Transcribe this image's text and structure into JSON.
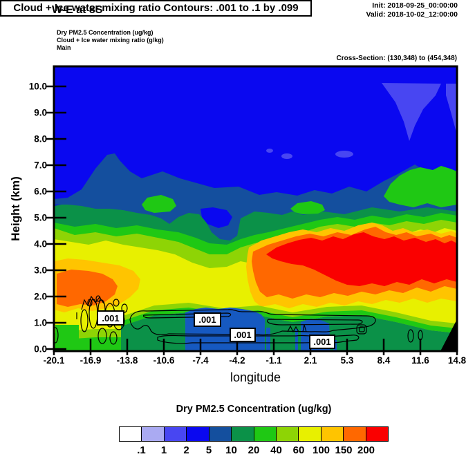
{
  "header": {
    "title": "W-E at 8S",
    "init_label": "Init: 2018-09-25_00:00:00",
    "valid_label": "Valid: 2018-10-02_12:00:00",
    "field_line1": "Dry PM2.5 Concentration   (ug/kg)",
    "field_line2": "Cloud + Ice water mixing ratio   (g/kg)",
    "field_line3": "Main",
    "cross_section": "Cross-Section: (130,348) to (454,348)"
  },
  "plot": {
    "banner": "Cloud + Ice water mixing ratio Contours: .001 to .1 by .099",
    "xlabel": "longitude",
    "ylabel": "Height (km)",
    "x_tick_labels": [
      "-20.1",
      "-16.9",
      "-13.8",
      "-10.6",
      "-7.4",
      "-4.2",
      "-1.1",
      "2.1",
      "5.3",
      "8.4",
      "11.6",
      "14.8"
    ],
    "y_tick_labels": [
      "10.0",
      "9.0",
      "8.0",
      "7.0",
      "6.0",
      "5.0",
      "4.0",
      "3.0",
      "2.0",
      "1.0",
      "0.0"
    ],
    "contour_labels": [
      ".001",
      ".001",
      ".001",
      ".001"
    ],
    "colors": {
      "surface_blue": "#1659c0",
      "terrain": "#000000"
    }
  },
  "colorbar": {
    "title": "Dry PM2.5 Concentration  (ug/kg)",
    "tick_labels": [
      ".1",
      "1",
      "2",
      "5",
      "10",
      "20",
      "40",
      "60",
      "100",
      "150",
      "200"
    ],
    "colors": [
      "#ffffff",
      "#aaaaf2",
      "#4846f2",
      "#0a08f0",
      "#144f9e",
      "#0b9148",
      "#1fc814",
      "#8ed405",
      "#e8f000",
      "#ffc400",
      "#ff6800",
      "#fa0000"
    ]
  },
  "chart_data": {
    "type": "heatmap",
    "title": "W-E at 8S",
    "subtitle": "Cloud + Ice water mixing ratio Contours: .001 to .1 by .099",
    "xlabel": "longitude",
    "ylabel": "Height (km)",
    "x_range": [
      -20.1,
      14.8
    ],
    "y_range": [
      0,
      10.8
    ],
    "grid": false,
    "fill_variable": "Dry PM2.5 Concentration (ug/kg)",
    "fill_levels": [
      0.1,
      1,
      2,
      5,
      10,
      20,
      40,
      60,
      100,
      150,
      200
    ],
    "fill_colors": [
      "#ffffff",
      "#aaaaf2",
      "#4846f2",
      "#0a08f0",
      "#144f9e",
      "#0b9148",
      "#1fc814",
      "#8ed405",
      "#e8f000",
      "#ffc400",
      "#ff6800",
      "#fa0000"
    ],
    "contour_variable": "Cloud + Ice water mixing ratio (g/kg)",
    "contour_levels_note": ".001 to .1 by .099",
    "contour_levels": [
      0.001,
      0.1
    ],
    "x": [
      -20.1,
      -16.9,
      -13.8,
      -10.6,
      -7.4,
      -4.2,
      -1.1,
      2.1,
      5.3,
      8.4,
      11.6,
      14.8
    ],
    "heights_km": [
      10,
      9,
      8,
      7,
      6,
      5,
      4,
      3,
      2,
      1,
      0
    ],
    "values_approx_ugkg": [
      [
        3,
        3,
        3,
        3,
        3,
        3,
        3,
        3,
        3,
        1.5,
        3,
        1.5
      ],
      [
        3,
        3,
        3,
        3,
        3,
        3,
        3,
        3,
        3,
        3,
        1.5,
        3
      ],
      [
        3,
        3,
        3,
        3,
        3,
        3,
        3,
        3,
        3,
        3,
        3,
        3
      ],
      [
        3,
        3,
        7,
        3,
        3,
        3,
        3,
        3,
        3,
        3,
        3,
        3
      ],
      [
        3,
        7,
        7,
        7,
        7,
        7,
        7,
        7,
        7,
        25,
        25,
        15
      ],
      [
        12,
        15,
        15,
        15,
        4,
        15,
        15,
        20,
        25,
        30,
        30,
        20
      ],
      [
        40,
        30,
        30,
        30,
        25,
        50,
        80,
        150,
        220,
        220,
        150,
        100
      ],
      [
        120,
        160,
        60,
        50,
        40,
        60,
        100,
        250,
        250,
        250,
        250,
        160
      ],
      [
        100,
        150,
        60,
        50,
        45,
        50,
        80,
        120,
        160,
        200,
        120,
        80
      ],
      [
        70,
        50,
        25,
        15,
        8,
        15,
        25,
        8,
        20,
        30,
        50,
        40
      ],
      [
        30,
        25,
        15,
        15,
        8,
        15,
        15,
        12,
        15,
        15,
        25,
        null
      ]
    ],
    "annotations": [
      {
        "text": ".001",
        "lon": -15.3,
        "height_km": 1.2
      },
      {
        "text": ".001",
        "lon": -6.9,
        "height_km": 1.1
      },
      {
        "text": ".001",
        "lon": -3.8,
        "height_km": 0.55
      },
      {
        "text": ".001",
        "lon": 3.0,
        "height_km": 0.3
      }
    ],
    "notes": "Cloud/ice .001 g/kg contour lines hug 0.5-1.5 km; black terrain mask at lower-right edge near 14.8 deg below ~1.2 km; elevated PM2.5 plume >200 ug/kg between 2.5-4.5 km from -1 to 14.8 deg; secondary 150-200 ug/kg plume near -17 deg at 1.5-3 km."
  }
}
